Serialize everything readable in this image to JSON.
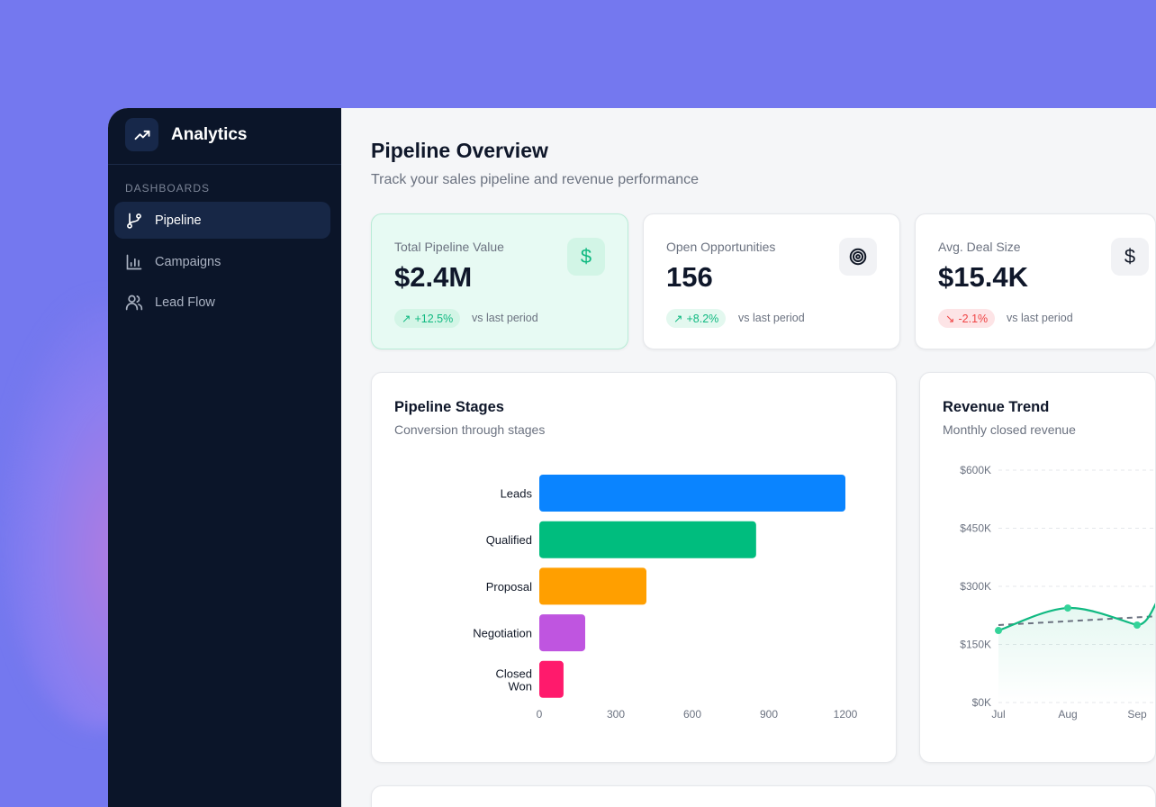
{
  "sidebar": {
    "app_title": "Analytics",
    "section": "DASHBOARDS",
    "items": [
      {
        "label": "Pipeline",
        "icon": "git-branch-icon",
        "active": true
      },
      {
        "label": "Campaigns",
        "icon": "bar-chart-icon"
      },
      {
        "label": "Lead Flow",
        "icon": "users-icon"
      }
    ]
  },
  "header": {
    "title": "Pipeline Overview",
    "subtitle": "Track your sales pipeline and revenue performance"
  },
  "kpis": [
    {
      "label": "Total Pipeline Value",
      "value": "$2.4M",
      "change": "+12.5%",
      "trend": "up",
      "note": "vs last period",
      "icon": "dollar-icon"
    },
    {
      "label": "Open Opportunities",
      "value": "156",
      "change": "+8.2%",
      "trend": "up",
      "note": "vs last period",
      "icon": "target-icon"
    },
    {
      "label": "Avg. Deal Size",
      "value": "$15.4K",
      "change": "-2.1%",
      "trend": "down",
      "note": "vs last period",
      "icon": "dollar-icon"
    }
  ],
  "colors": {
    "accent_green": "#10b981",
    "down_red": "#ef4444",
    "sidebar_bg": "#0b1529"
  },
  "chart_data": [
    {
      "type": "bar",
      "orientation": "horizontal",
      "title": "Pipeline Stages",
      "subtitle": "Conversion through stages",
      "categories": [
        "Leads",
        "Qualified",
        "Proposal",
        "Negotiation",
        "Closed Won"
      ],
      "values": [
        1200,
        850,
        420,
        180,
        95
      ],
      "colors": [
        "#0a84ff",
        "#00bd7e",
        "#ff9f00",
        "#bf55e0",
        "#ff1a6c"
      ],
      "xticks": [
        "0",
        "300",
        "600",
        "900",
        "1200"
      ],
      "xlim": [
        0,
        1200
      ]
    },
    {
      "type": "line",
      "title": "Revenue Trend",
      "subtitle": "Monthly closed revenue",
      "x": [
        "Jul",
        "Aug",
        "Sep"
      ],
      "series": [
        {
          "values": [
            186000,
            244000,
            200000
          ],
          "color": "#10b981"
        }
      ],
      "trendline": {
        "start": 200000,
        "slope_per_month": 10000,
        "style": "dashed"
      },
      "yticks": [
        "$0K",
        "$150K",
        "$300K",
        "$450K",
        "$600K"
      ],
      "ylim": [
        0,
        600000
      ],
      "grid": true
    }
  ]
}
